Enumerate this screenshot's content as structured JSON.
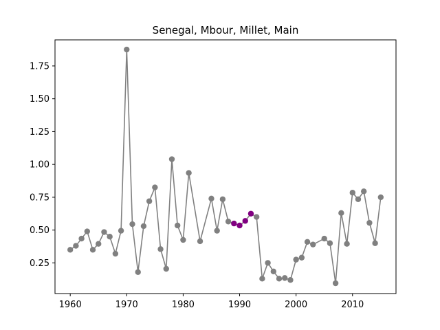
{
  "chart_data": {
    "type": "line",
    "title": "Senegal, Mbour, Millet, Main",
    "xlabel": "",
    "ylabel": "",
    "xlim": [
      1957.3,
      2017.7
    ],
    "ylim": [
      0.0165,
      1.9485
    ],
    "xticks": [
      1960,
      1970,
      1980,
      1990,
      2000,
      2010
    ],
    "yticks": [
      0.25,
      0.5,
      0.75,
      1.0,
      1.25,
      1.5,
      1.75
    ],
    "ytick_labels": [
      "0.25",
      "0.50",
      "0.75",
      "1.00",
      "1.25",
      "1.50",
      "1.75"
    ],
    "grid": false,
    "colors": {
      "line": "#808080",
      "marker": "#808080",
      "highlight": "#800080"
    },
    "series": [
      {
        "points": [
          [
            1960,
            0.35
          ],
          [
            1961,
            0.38
          ],
          [
            1962,
            0.435
          ],
          [
            1963,
            0.49
          ],
          [
            1964,
            0.35
          ],
          [
            1965,
            0.395
          ],
          [
            1966,
            0.485
          ],
          [
            1967,
            0.45
          ],
          [
            1968,
            0.32
          ],
          [
            1969,
            0.495
          ],
          [
            1970,
            1.875
          ],
          [
            1971,
            0.545
          ],
          [
            1972,
            0.18
          ],
          [
            1973,
            0.53
          ],
          [
            1974,
            0.72
          ],
          [
            1975,
            0.825
          ],
          [
            1976,
            0.355
          ],
          [
            1977,
            0.205
          ],
          [
            1978,
            1.04
          ],
          [
            1979,
            0.535
          ],
          [
            1980,
            0.425
          ],
          [
            1981,
            0.935
          ],
          [
            1983,
            0.415
          ],
          [
            1985,
            0.74
          ],
          [
            1986,
            0.495
          ],
          [
            1987,
            0.735
          ],
          [
            1988,
            0.565
          ],
          [
            1989,
            0.55
          ],
          [
            1990,
            0.535
          ],
          [
            1991,
            0.57
          ],
          [
            1992,
            0.625
          ],
          [
            1993,
            0.6
          ],
          [
            1994,
            0.13
          ],
          [
            1995,
            0.25
          ],
          [
            1996,
            0.185
          ],
          [
            1997,
            0.13
          ],
          [
            1998,
            0.135
          ],
          [
            1999,
            0.12
          ],
          [
            2000,
            0.275
          ],
          [
            2001,
            0.29
          ],
          [
            2002,
            0.41
          ],
          [
            2003,
            0.39
          ],
          [
            2005,
            0.435
          ],
          [
            2006,
            0.4
          ],
          [
            2007,
            0.095
          ],
          [
            2008,
            0.63
          ],
          [
            2009,
            0.395
          ],
          [
            2010,
            0.785
          ],
          [
            2011,
            0.735
          ],
          [
            2012,
            0.795
          ],
          [
            2013,
            0.555
          ],
          [
            2014,
            0.4
          ],
          [
            2015,
            0.75
          ]
        ],
        "highlight_x": [
          1989,
          1990,
          1991,
          1992
        ]
      }
    ]
  }
}
